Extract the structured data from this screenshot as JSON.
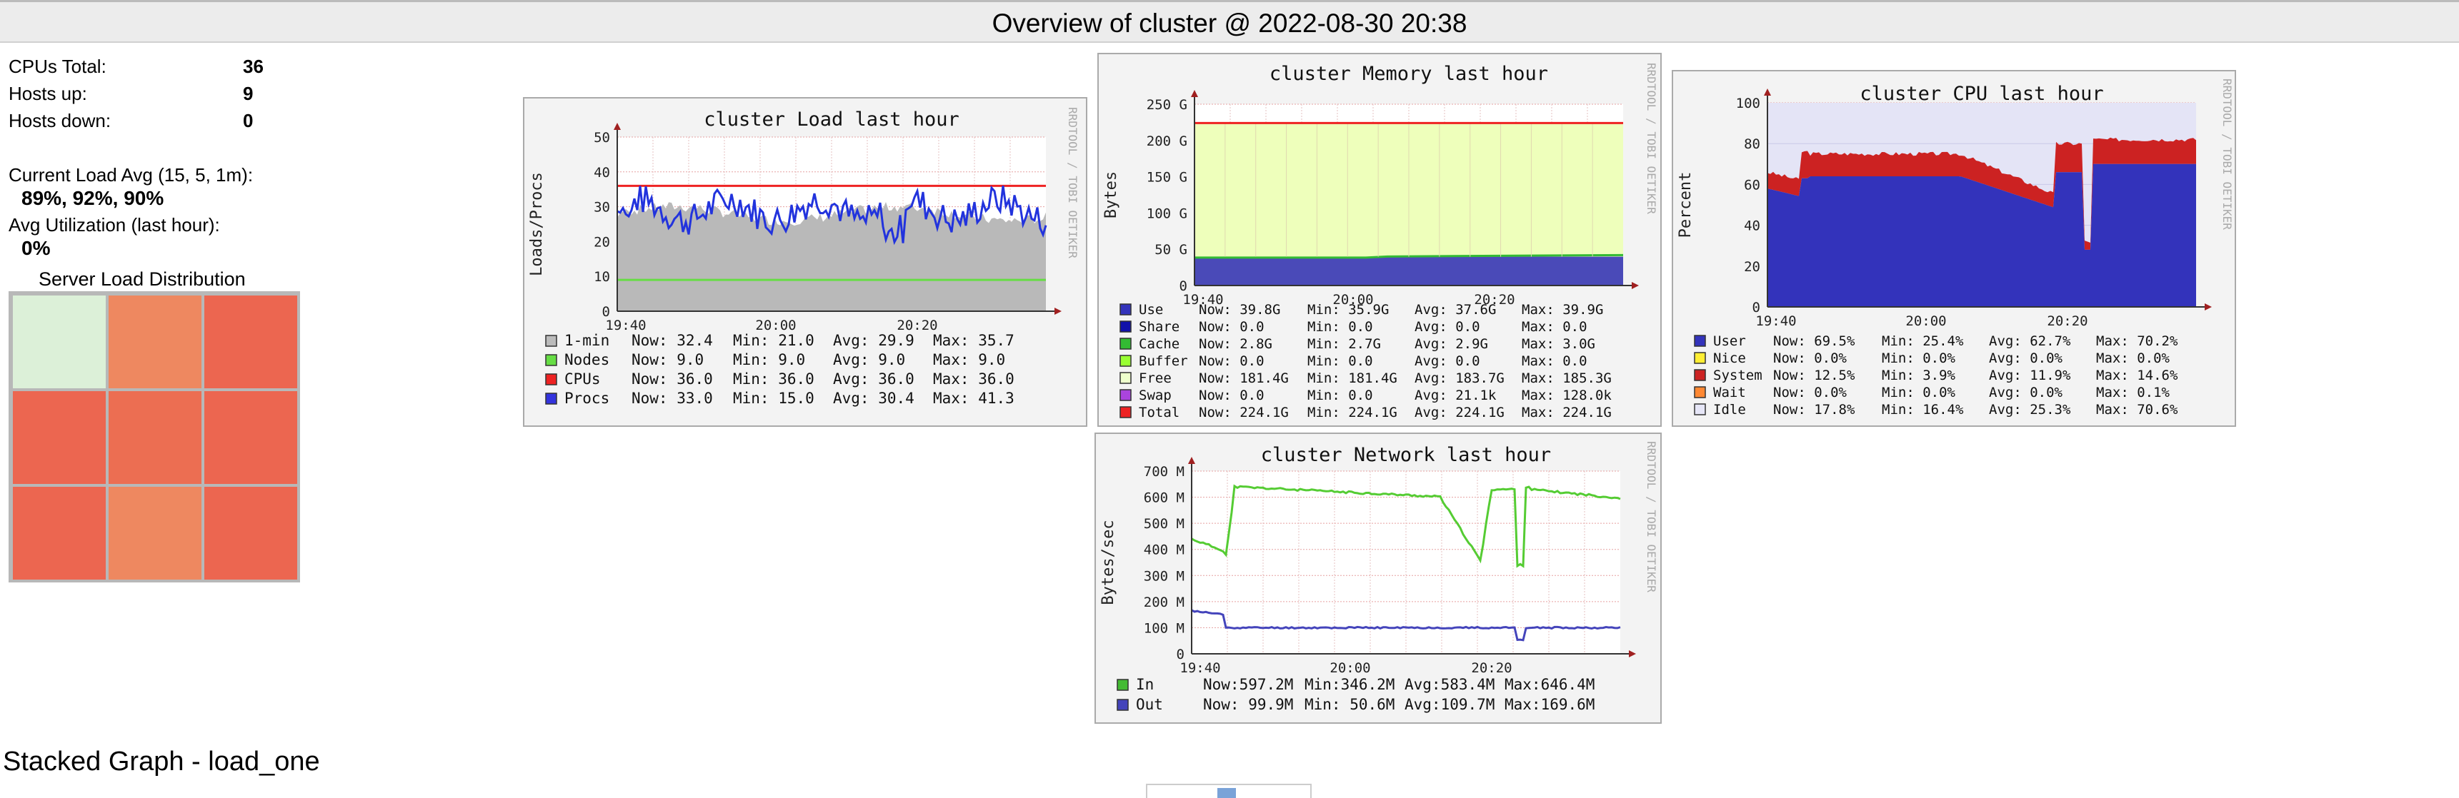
{
  "header": {
    "title": "Overview of cluster @ 2022-08-30 20:38"
  },
  "summary": {
    "rows": [
      {
        "label": "CPUs Total:",
        "value": "36"
      },
      {
        "label": "Hosts up:",
        "value": "9"
      },
      {
        "label": "Hosts down:",
        "value": "0"
      }
    ],
    "load_avg_label": "Current Load Avg (15, 5, 1m):",
    "load_avg_value": "89%, 92%, 90%",
    "util_label": "Avg Utilization (last hour):",
    "util_value": "0%"
  },
  "heatmap": {
    "title": "Server Load Distribution",
    "cells": [
      "#dcf0d8",
      "#ee8860",
      "#ec6650",
      "#ec6650",
      "#ec6e52",
      "#ec6650",
      "#ec6650",
      "#ee8860",
      "#ec6650"
    ]
  },
  "watermark": "RRDTOOL / TOBI OETIKER",
  "load_graph": {
    "title": "cluster Load last hour",
    "ylabel": "Loads/Procs",
    "yticks": [
      "0",
      "10",
      "20",
      "30",
      "40",
      "50"
    ],
    "xticks": [
      "19:40",
      "20:00",
      "20:20"
    ],
    "legend": [
      {
        "name": "1-min",
        "now": "Now: 32.4",
        "min": "Min: 21.0",
        "avg": "Avg: 29.9",
        "max": "Max: 35.7",
        "color": "#bbbbbb"
      },
      {
        "name": "Nodes",
        "now": "Now:  9.0",
        "min": "Min:  9.0",
        "avg": "Avg:  9.0",
        "max": "Max:  9.0",
        "color": "#66dd44"
      },
      {
        "name": "CPUs",
        "now": "Now: 36.0",
        "min": "Min: 36.0",
        "avg": "Avg: 36.0",
        "max": "Max: 36.0",
        "color": "#ee2222"
      },
      {
        "name": "Procs",
        "now": "Now: 33.0",
        "min": "Min: 15.0",
        "avg": "Avg: 30.4",
        "max": "Max: 41.3",
        "color": "#3333dd"
      }
    ]
  },
  "memory_graph": {
    "title": "cluster Memory last hour",
    "ylabel": "Bytes",
    "yticks": [
      "0",
      "50 G",
      "100 G",
      "150 G",
      "200 G",
      "250 G"
    ],
    "xticks": [
      "19:40",
      "20:00",
      "20:20"
    ],
    "legend": [
      {
        "name": "Use",
        "now": "Now:  39.8G",
        "min": "Min:  35.9G",
        "avg": "Avg:  37.6G",
        "max": "Max:  39.9G",
        "color": "#3333bb"
      },
      {
        "name": "Share",
        "now": "Now:   0.0",
        "min": "Min:   0.0",
        "avg": "Avg:   0.0",
        "max": "Max:   0.0",
        "color": "#1111aa"
      },
      {
        "name": "Cache",
        "now": "Now:   2.8G",
        "min": "Min:   2.7G",
        "avg": "Avg:   2.9G",
        "max": "Max:   3.0G",
        "color": "#33bb33"
      },
      {
        "name": "Buffer",
        "now": "Now:   0.0",
        "min": "Min:   0.0",
        "avg": "Avg:   0.0",
        "max": "Max:   0.0",
        "color": "#99ff33"
      },
      {
        "name": "Free",
        "now": "Now: 181.4G",
        "min": "Min: 181.4G",
        "avg": "Avg: 183.7G",
        "max": "Max: 185.3G",
        "color": "#eeffcc"
      },
      {
        "name": "Swap",
        "now": "Now:   0.0",
        "min": "Min:   0.0",
        "avg": "Avg:  21.1k",
        "max": "Max: 128.0k",
        "color": "#aa44dd"
      },
      {
        "name": "Total",
        "now": "Now: 224.1G",
        "min": "Min: 224.1G",
        "avg": "Avg: 224.1G",
        "max": "Max: 224.1G",
        "color": "#ee2222"
      }
    ]
  },
  "cpu_graph": {
    "title": "cluster CPU last hour",
    "ylabel": "Percent",
    "yticks": [
      "0",
      "20",
      "40",
      "60",
      "80",
      "100"
    ],
    "xticks": [
      "19:40",
      "20:00",
      "20:20"
    ],
    "legend": [
      {
        "name": "User",
        "now": "Now: 69.5%",
        "min": "Min: 25.4%",
        "avg": "Avg: 62.7%",
        "max": "Max: 70.2%",
        "color": "#3333bb"
      },
      {
        "name": "Nice",
        "now": "Now:  0.0%",
        "min": "Min:  0.0%",
        "avg": "Avg:  0.0%",
        "max": "Max:  0.0%",
        "color": "#ffee33"
      },
      {
        "name": "System",
        "now": "Now: 12.5%",
        "min": "Min:  3.9%",
        "avg": "Avg: 11.9%",
        "max": "Max: 14.6%",
        "color": "#cc2222"
      },
      {
        "name": "Wait",
        "now": "Now:  0.0%",
        "min": "Min:  0.0%",
        "avg": "Avg:  0.0%",
        "max": "Max:  0.1%",
        "color": "#ff8833"
      },
      {
        "name": "Idle",
        "now": "Now: 17.8%",
        "min": "Min: 16.4%",
        "avg": "Avg: 25.3%",
        "max": "Max: 70.6%",
        "color": "#e6e6f7"
      }
    ]
  },
  "network_graph": {
    "title": "cluster Network last hour",
    "ylabel": "Bytes/sec",
    "yticks": [
      "0",
      "100 M",
      "200 M",
      "300 M",
      "400 M",
      "500 M",
      "600 M",
      "700 M"
    ],
    "xticks": [
      "19:40",
      "20:00",
      "20:20"
    ],
    "legend": [
      {
        "name": "In",
        "now": "Now:597.2M",
        "min": "Min:346.2M",
        "avg": "Avg:583.4M",
        "max": "Max:646.4M",
        "color": "#44bb33"
      },
      {
        "name": "Out",
        "now": "Now: 99.9M",
        "min": "Min: 50.6M",
        "avg": "Avg:109.7M",
        "max": "Max:169.6M",
        "color": "#4444bb"
      }
    ]
  },
  "stacked": {
    "title": "Stacked Graph - load_one"
  }
}
